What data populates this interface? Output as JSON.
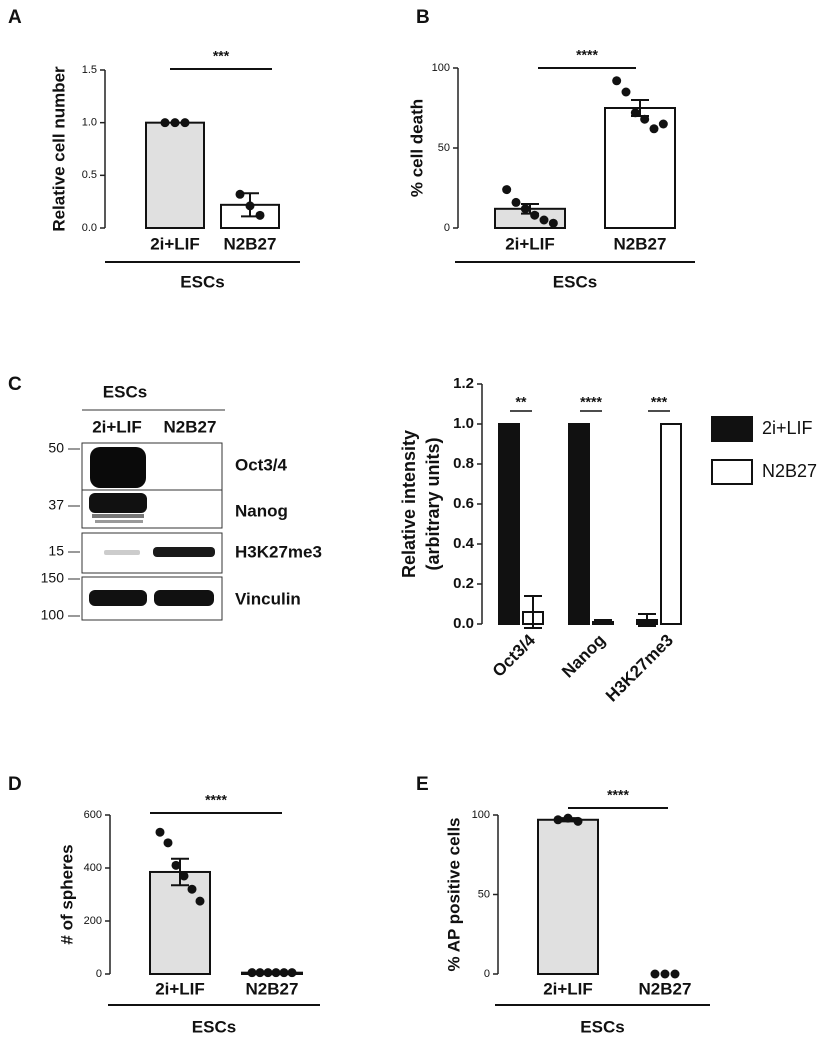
{
  "chart_data": [
    {
      "type": "bar",
      "panel": "A",
      "ylabel": "Relative cell number",
      "categories": [
        "2i+LIF",
        "N2B27"
      ],
      "values": [
        1.0,
        0.22
      ],
      "errors": [
        0,
        0.11
      ],
      "points": [
        [
          1.0,
          1.0,
          1.0
        ],
        [
          0.32,
          0.21,
          0.12
        ]
      ],
      "colors": [
        "#e0e0e0",
        "#ffffff"
      ],
      "ylim": [
        0,
        1.5
      ],
      "yticks": [
        {
          "value": 0,
          "label": "0.0"
        },
        0.5,
        {
          "value": 1,
          "label": "1.0"
        },
        1.5
      ],
      "significance": "***",
      "group_label": "ESCs"
    },
    {
      "type": "bar",
      "panel": "B",
      "ylabel": "% cell death",
      "categories": [
        "2i+LIF",
        "N2B27"
      ],
      "values": [
        12,
        75
      ],
      "errors": [
        3,
        5
      ],
      "points": [
        [
          24,
          16,
          12,
          8,
          5,
          3
        ],
        [
          92,
          85,
          72,
          68,
          62,
          65
        ]
      ],
      "colors": [
        "#e0e0e0",
        "#ffffff"
      ],
      "ylim": [
        0,
        100
      ],
      "yticks": [
        0,
        50,
        100
      ],
      "significance": "****",
      "group_label": "ESCs"
    },
    {
      "type": "bar",
      "ylabel": [
        "Relative intensity",
        "(arbitrary units)"
      ],
      "categories": [
        "Oct3/4",
        "Nanog",
        "H3K27me3"
      ],
      "series": [
        {
          "name": "2i+LIF",
          "color": "#111111",
          "values": [
            1.0,
            1.0,
            0.02
          ],
          "errors": [
            0,
            0,
            0.03
          ]
        },
        {
          "name": "N2B27",
          "color": "#ffffff",
          "values": [
            0.06,
            0.01,
            1.0
          ],
          "errors": [
            0.08,
            0.01,
            0
          ]
        }
      ],
      "ylim": [
        0,
        1.2
      ],
      "yticks": [
        {
          "value": 0,
          "label": "0.0"
        },
        0.2,
        0.4,
        0.6,
        0.8,
        {
          "value": 1,
          "label": "1.0"
        },
        1.2
      ],
      "significance": [
        "**",
        "****",
        "***"
      ],
      "legend": "right"
    },
    {
      "type": "bar",
      "panel": "D",
      "ylabel": "# of spheres",
      "categories": [
        "2i+LIF",
        "N2B27"
      ],
      "values": [
        385,
        5
      ],
      "errors": [
        50,
        2
      ],
      "points": [
        [
          535,
          495,
          410,
          370,
          320,
          275
        ],
        [
          5,
          5,
          5,
          5,
          5,
          5
        ]
      ],
      "colors": [
        "#e0e0e0",
        "#ffffff"
      ],
      "ylim": [
        0,
        600
      ],
      "yticks": [
        0,
        200,
        400,
        600
      ],
      "significance": "****",
      "group_label": "ESCs"
    },
    {
      "type": "bar",
      "panel": "E",
      "ylabel": "% AP positive cells",
      "categories": [
        "2i+LIF",
        "N2B27"
      ],
      "values": [
        97,
        0
      ],
      "errors": [
        1,
        0
      ],
      "points": [
        [
          97,
          98,
          96
        ],
        [
          0,
          0,
          0
        ]
      ],
      "colors": [
        "#e0e0e0",
        "#ffffff"
      ],
      "ylim": [
        0,
        100
      ],
      "yticks": [
        0,
        50,
        100
      ],
      "significance": "****",
      "group_label": "ESCs"
    }
  ],
  "blot": {
    "panel": "C",
    "group": "ESCs",
    "lanes": [
      "2i+LIF",
      "N2B27"
    ],
    "markers": [
      50,
      37,
      15,
      150,
      100
    ],
    "proteins": [
      "Oct3/4",
      "Nanog",
      "H3K27me3",
      "Vinculin"
    ]
  }
}
